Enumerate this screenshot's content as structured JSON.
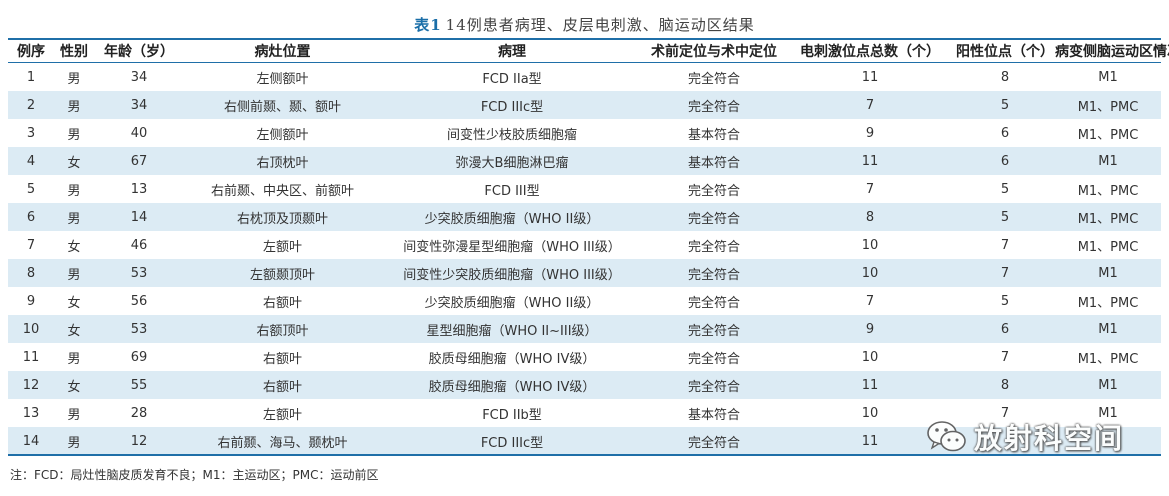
{
  "caption": {
    "label": "表1",
    "title": "14例患者病理、皮层电刺激、脑运动区结果"
  },
  "table": {
    "headers": [
      "例序",
      "性别",
      "年龄（岁）",
      "病灶位置",
      "病理",
      "术前定位与术中定位",
      "电刺激位点总数（个）",
      "阳性位点（个）",
      "病变侧脑运动区情况"
    ],
    "rows": [
      [
        "1",
        "男",
        "34",
        "左侧额叶",
        "FCD IIa型",
        "完全符合",
        "11",
        "8",
        "M1"
      ],
      [
        "2",
        "男",
        "34",
        "右侧前颞、颞、额叶",
        "FCD IIIc型",
        "完全符合",
        "7",
        "5",
        "M1、PMC"
      ],
      [
        "3",
        "男",
        "40",
        "左侧额叶",
        "间变性少枝胶质细胞瘤",
        "基本符合",
        "9",
        "6",
        "M1、PMC"
      ],
      [
        "4",
        "女",
        "67",
        "右顶枕叶",
        "弥漫大B细胞淋巴瘤",
        "基本符合",
        "11",
        "6",
        "M1"
      ],
      [
        "5",
        "男",
        "13",
        "右前颞、中央区、前额叶",
        "FCD III型",
        "完全符合",
        "7",
        "5",
        "M1、PMC"
      ],
      [
        "6",
        "男",
        "14",
        "右枕顶及顶颞叶",
        "少突胶质细胞瘤（WHO II级）",
        "完全符合",
        "8",
        "5",
        "M1、PMC"
      ],
      [
        "7",
        "女",
        "46",
        "左额叶",
        "间变性弥漫星型细胞瘤（WHO III级）",
        "完全符合",
        "10",
        "7",
        "M1、PMC"
      ],
      [
        "8",
        "男",
        "53",
        "左额颞顶叶",
        "间变性少突胶质细胞瘤（WHO III级）",
        "完全符合",
        "10",
        "7",
        "M1"
      ],
      [
        "9",
        "女",
        "56",
        "右额叶",
        "少突胶质细胞瘤（WHO II级）",
        "完全符合",
        "7",
        "5",
        "M1、PMC"
      ],
      [
        "10",
        "女",
        "53",
        "右额顶叶",
        "星型细胞瘤（WHO II~III级）",
        "完全符合",
        "9",
        "6",
        "M1"
      ],
      [
        "11",
        "男",
        "69",
        "右额叶",
        "胶质母细胞瘤（WHO IV级）",
        "完全符合",
        "10",
        "7",
        "M1、PMC"
      ],
      [
        "12",
        "女",
        "55",
        "右额叶",
        "胶质母细胞瘤（WHO IV级）",
        "完全符合",
        "11",
        "8",
        "M1"
      ],
      [
        "13",
        "男",
        "28",
        "左额叶",
        "FCD IIb型",
        "基本符合",
        "10",
        "7",
        "M1"
      ],
      [
        "14",
        "男",
        "12",
        "右前颞、海马、颞枕叶",
        "FCD IIIc型",
        "完全符合",
        "11",
        "",
        ""
      ]
    ]
  },
  "note": "注：FCD：局灶性脑皮质发育不良；M1：主运动区；PMC：运动前区",
  "watermark": {
    "text": "放射科空间",
    "icon": "wechat-icon"
  },
  "colors": {
    "accent": "#1f6fa8",
    "row_alt": "#dcebf4",
    "caption_label": "#1a6ea8"
  }
}
